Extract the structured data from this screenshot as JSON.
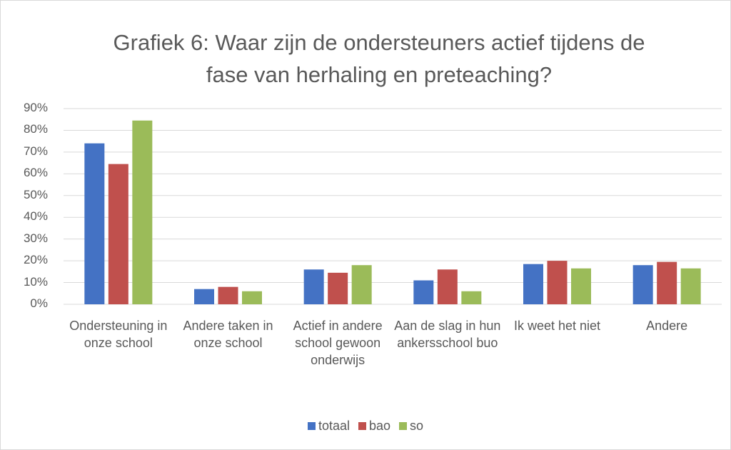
{
  "chart_data": {
    "type": "bar",
    "title": "Grafiek 6: Waar zijn de ondersteuners actief tijdens de fase van herhaling en preteaching?",
    "categories": [
      "Ondersteuning in onze school",
      "Andere taken in onze school",
      "Actief in andere school gewoon onderwijs",
      "Aan de slag in hun ankersschool buo",
      "Ik weet het niet",
      "Andere"
    ],
    "series": [
      {
        "name": "totaal",
        "color": "#4472c4",
        "values": [
          74,
          7,
          16,
          11,
          18.5,
          18
        ]
      },
      {
        "name": "bao",
        "color": "#c0504d",
        "values": [
          64.5,
          8,
          14.5,
          16,
          20,
          19.5
        ]
      },
      {
        "name": "so",
        "color": "#9bbb59",
        "values": [
          84.5,
          6,
          18,
          6,
          16.5,
          16.5
        ]
      }
    ],
    "ylim": [
      0,
      90
    ],
    "yticks": [
      {
        "value": 0,
        "label": "0%"
      },
      {
        "value": 10,
        "label": "10%"
      },
      {
        "value": 20,
        "label": "20%"
      },
      {
        "value": 30,
        "label": "30%"
      },
      {
        "value": 40,
        "label": "40%"
      },
      {
        "value": 50,
        "label": "50%"
      },
      {
        "value": 60,
        "label": "60%"
      },
      {
        "value": 70,
        "label": "70%"
      },
      {
        "value": 80,
        "label": "80%"
      },
      {
        "value": 90,
        "label": "90%"
      }
    ],
    "grid": true,
    "legend": "bottom"
  }
}
